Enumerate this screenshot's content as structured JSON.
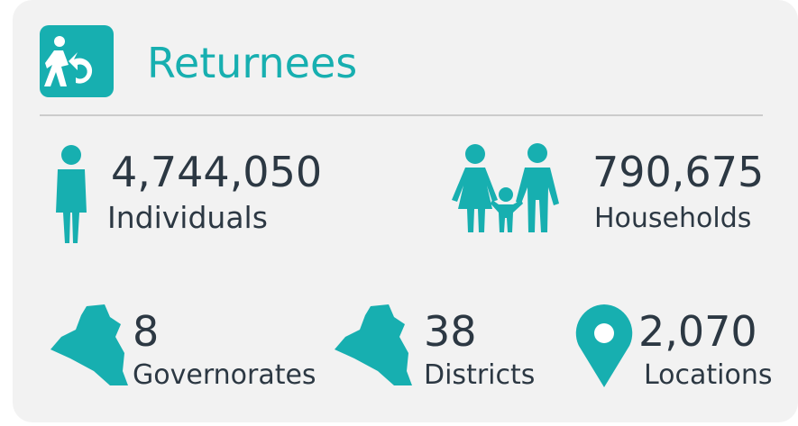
{
  "header": {
    "title": "Returnees"
  },
  "stats": [
    {
      "value": "4,744,050",
      "label": "Individuals"
    },
    {
      "value": "790,675",
      "label": "Households"
    },
    {
      "value": "8",
      "label": "Governorates"
    },
    {
      "value": "38",
      "label": "Districts"
    },
    {
      "value": "2,070",
      "label": "Locations"
    }
  ]
}
